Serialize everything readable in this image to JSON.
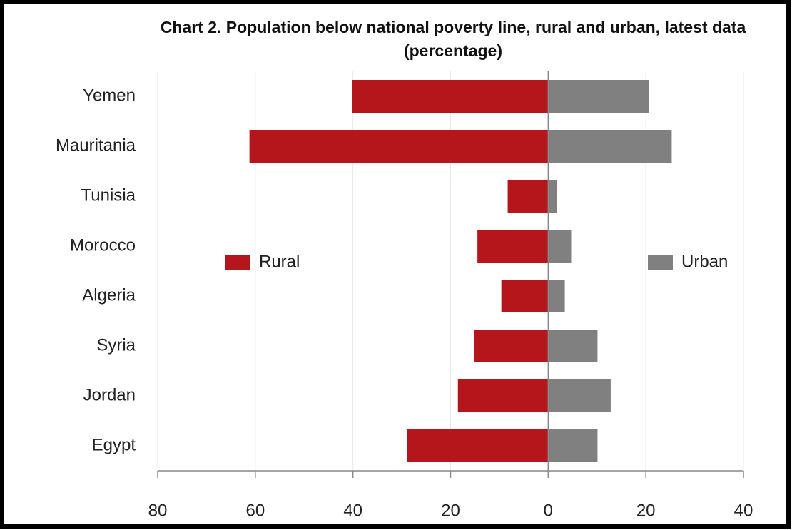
{
  "chart_data": {
    "type": "bar",
    "orientation": "horizontal",
    "title": "Chart 2. Population below national poverty line, rural and urban, latest data (percentage)",
    "categories": [
      "Yemen",
      "Mauritania",
      "Tunisia",
      "Morocco",
      "Algeria",
      "Syria",
      "Jordan",
      "Egypt"
    ],
    "series": [
      {
        "name": "Rural",
        "color": "#b5161b",
        "values": [
          -40.1,
          -61.2,
          -8.3,
          -14.5,
          -9.6,
          -15.2,
          -18.5,
          -28.9
        ]
      },
      {
        "name": "Urban",
        "color": "#808080",
        "values": [
          20.7,
          25.3,
          1.8,
          4.7,
          3.4,
          10.1,
          12.8,
          10.1
        ]
      }
    ],
    "xlim": [
      -80,
      40
    ],
    "xticks": [
      {
        "value": -80,
        "label": "80"
      },
      {
        "value": -60,
        "label": "60"
      },
      {
        "value": -40,
        "label": "40"
      },
      {
        "value": -20,
        "label": "20"
      },
      0,
      20,
      40
    ],
    "grid": true,
    "legend": "center"
  }
}
